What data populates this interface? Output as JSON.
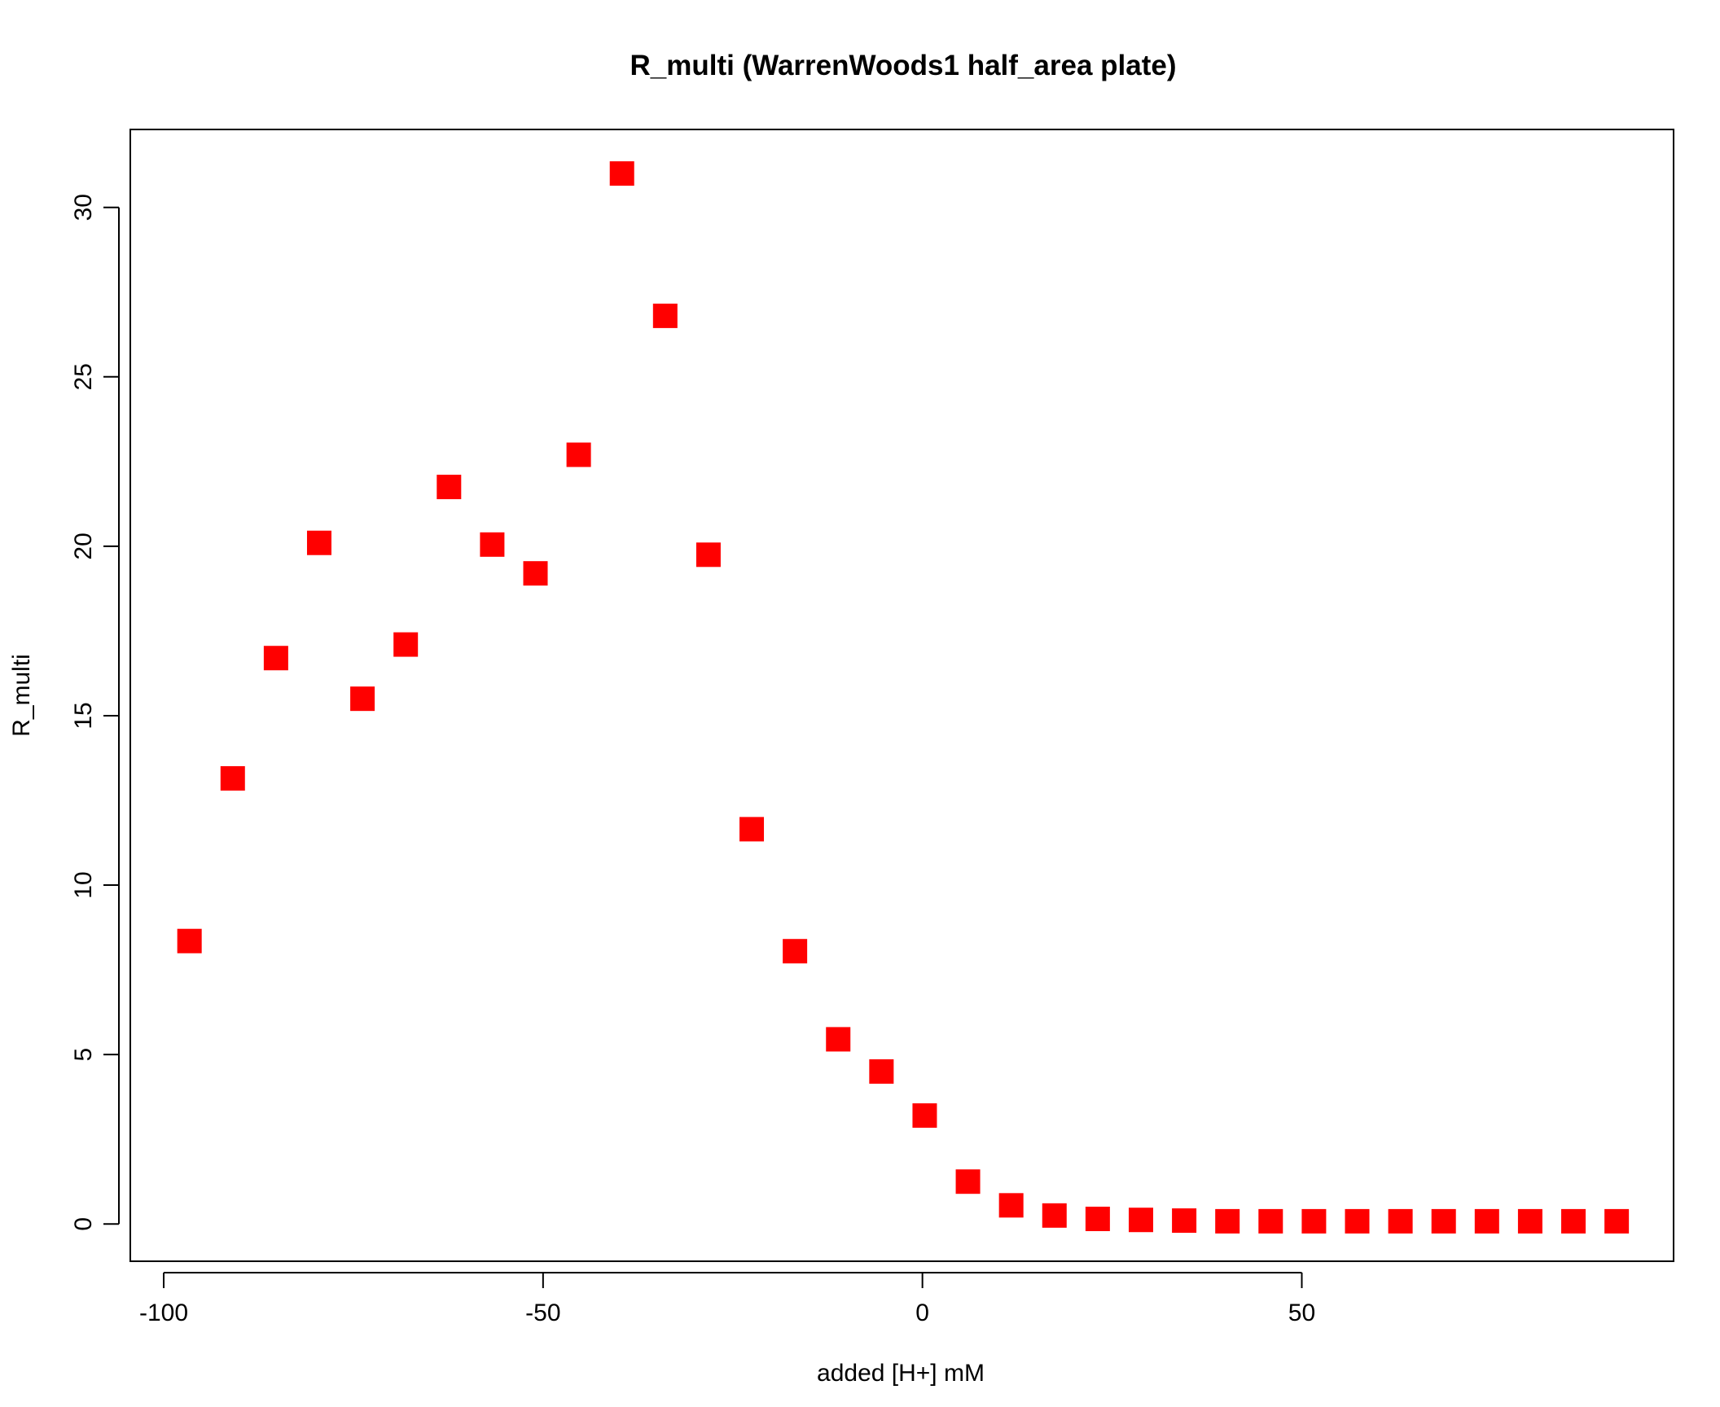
{
  "chart_data": {
    "type": "scatter",
    "title": "R_multi (WarrenWoods1 half_area plate)",
    "xlabel": "added [H+] mM",
    "ylabel": "R_multi",
    "xlim": [
      -104.4,
      99.0
    ],
    "ylim": [
      -1.1,
      32.3
    ],
    "x_ticks": [
      -100,
      -50,
      0,
      50
    ],
    "x_tick_labels": [
      "-100",
      "-50",
      "0",
      "50"
    ],
    "y_ticks": [
      0,
      5,
      10,
      15,
      20,
      25,
      30
    ],
    "y_tick_labels": [
      "0",
      "5",
      "10",
      "15",
      "20",
      "25",
      "30"
    ],
    "grid": false,
    "marker": "square",
    "marker_color": "#ff0000",
    "series": [
      {
        "x": [
          -96.6,
          -90.9,
          -85.2,
          -79.5,
          -73.8,
          -68.1,
          -62.4,
          -56.7,
          -51.0,
          -45.3,
          -39.6,
          -33.9,
          -28.2,
          -22.5,
          -16.8,
          -11.1,
          -5.4,
          0.3,
          6.0,
          11.7,
          17.4,
          23.1,
          28.8,
          34.5,
          40.2,
          45.9,
          51.6,
          57.3,
          63.0,
          68.7,
          74.4,
          80.1,
          85.8,
          91.5
        ],
        "y": [
          8.35,
          13.15,
          16.7,
          20.1,
          15.5,
          17.1,
          21.75,
          20.05,
          19.2,
          22.7,
          31.0,
          26.8,
          19.75,
          11.65,
          8.05,
          5.45,
          4.5,
          3.2,
          1.25,
          0.55,
          0.25,
          0.15,
          0.12,
          0.1,
          0.08,
          0.08,
          0.08,
          0.08,
          0.08,
          0.08,
          0.08,
          0.08,
          0.08,
          0.08
        ]
      }
    ]
  }
}
